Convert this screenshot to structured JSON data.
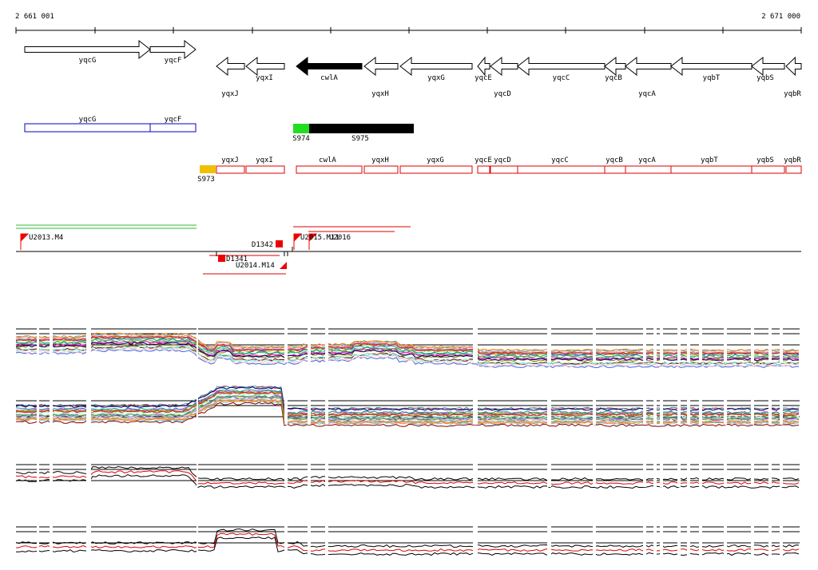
{
  "ruler": {
    "start_label": "2 661 001",
    "end_label": "2 671 000"
  },
  "genes": [
    {
      "name": "yqcG",
      "strand": "+",
      "filled": false,
      "label_row": "top"
    },
    {
      "name": "yqcF",
      "strand": "+",
      "filled": false,
      "label_row": "top"
    },
    {
      "name": "yqxJ",
      "strand": "-",
      "filled": false,
      "label_row": "low"
    },
    {
      "name": "yqxI",
      "strand": "-",
      "filled": false,
      "label_row": "mid"
    },
    {
      "name": "cwlA",
      "strand": "-",
      "filled": true,
      "label_row": "mid"
    },
    {
      "name": "yqxH",
      "strand": "-",
      "filled": false,
      "label_row": "low"
    },
    {
      "name": "yqxG",
      "strand": "-",
      "filled": false,
      "label_row": "mid"
    },
    {
      "name": "yqcE",
      "strand": "-",
      "filled": false,
      "label_row": "mid"
    },
    {
      "name": "yqcD",
      "strand": "-",
      "filled": false,
      "label_row": "low"
    },
    {
      "name": "yqcC",
      "strand": "-",
      "filled": false,
      "label_row": "mid"
    },
    {
      "name": "yqcB",
      "strand": "-",
      "filled": false,
      "label_row": "mid"
    },
    {
      "name": "yqcA",
      "strand": "-",
      "filled": false,
      "label_row": "low"
    },
    {
      "name": "yqbT",
      "strand": "-",
      "filled": false,
      "label_row": "mid"
    },
    {
      "name": "yqbS",
      "strand": "-",
      "filled": false,
      "label_row": "mid"
    },
    {
      "name": "yqbR",
      "strand": "-",
      "filled": false,
      "label_row": "low"
    }
  ],
  "blue_track": [
    "yqcG",
    "yqcF"
  ],
  "segments": [
    {
      "label": "S974",
      "color": "#22dd22"
    },
    {
      "label": "S975",
      "color": "#000000"
    },
    {
      "label": "S973",
      "color": "#f0c000"
    }
  ],
  "red_track": [
    "yqxJ",
    "yqxI",
    "cwlA",
    "yqxH",
    "yqxG",
    "yqcE",
    "yqcD",
    "yqcC",
    "yqcB",
    "yqcA",
    "yqbT",
    "yqbS",
    "yqbR"
  ],
  "features": [
    {
      "label": "U2013.M4"
    },
    {
      "label": "D1342"
    },
    {
      "label": "U2015.M11"
    },
    {
      "label": "U2016"
    },
    {
      "label": "D1341"
    },
    {
      "label": "U2014.M14"
    }
  ],
  "colors": {
    "gene_outline": "#000000",
    "blue_track": "#0000cc",
    "red_track": "#dd0000",
    "green_lines": "#33bb33",
    "marker": "#ee0000"
  }
}
